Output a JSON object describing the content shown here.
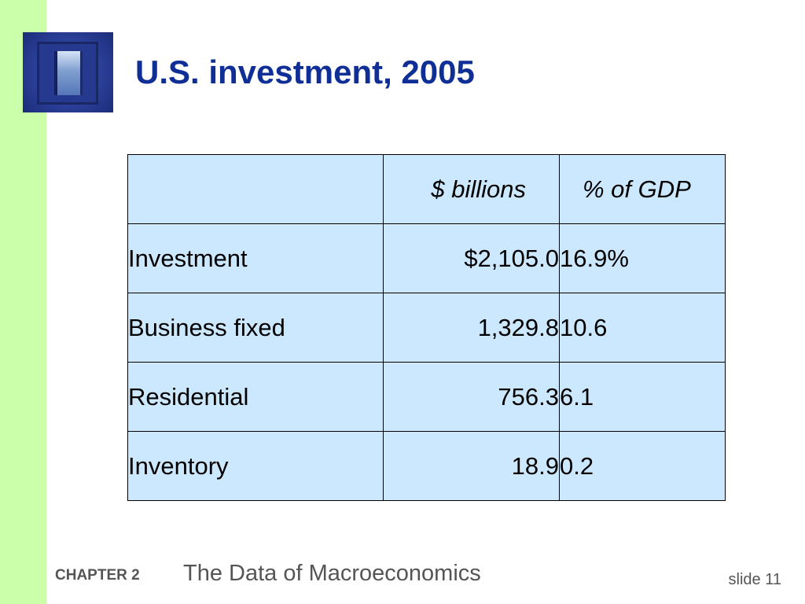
{
  "title": "U.S. investment, 2005",
  "table": {
    "headers": [
      "",
      "$ billions",
      "% of GDP"
    ],
    "rows": [
      {
        "label": "Investment",
        "billions": "$2,105.0",
        "pct": "16.9%"
      },
      {
        "label": "Business fixed",
        "billions": "1,329.8",
        "pct": "10.6"
      },
      {
        "label": "Residential",
        "billions": "756.3",
        "pct": "6.1"
      },
      {
        "label": "Inventory",
        "billions": "18.9",
        "pct": "0.2"
      }
    ]
  },
  "footer": {
    "chapter": "CHAPTER 2",
    "chapter_title": "The Data of Macroeconomics",
    "slide": "slide 11"
  },
  "colors": {
    "sidebar": "#ccffaa",
    "title": "#0f2e96",
    "table_fill": "#cce8ff",
    "footer_text": "#555555"
  },
  "icons": {
    "logo": "window-logo"
  }
}
